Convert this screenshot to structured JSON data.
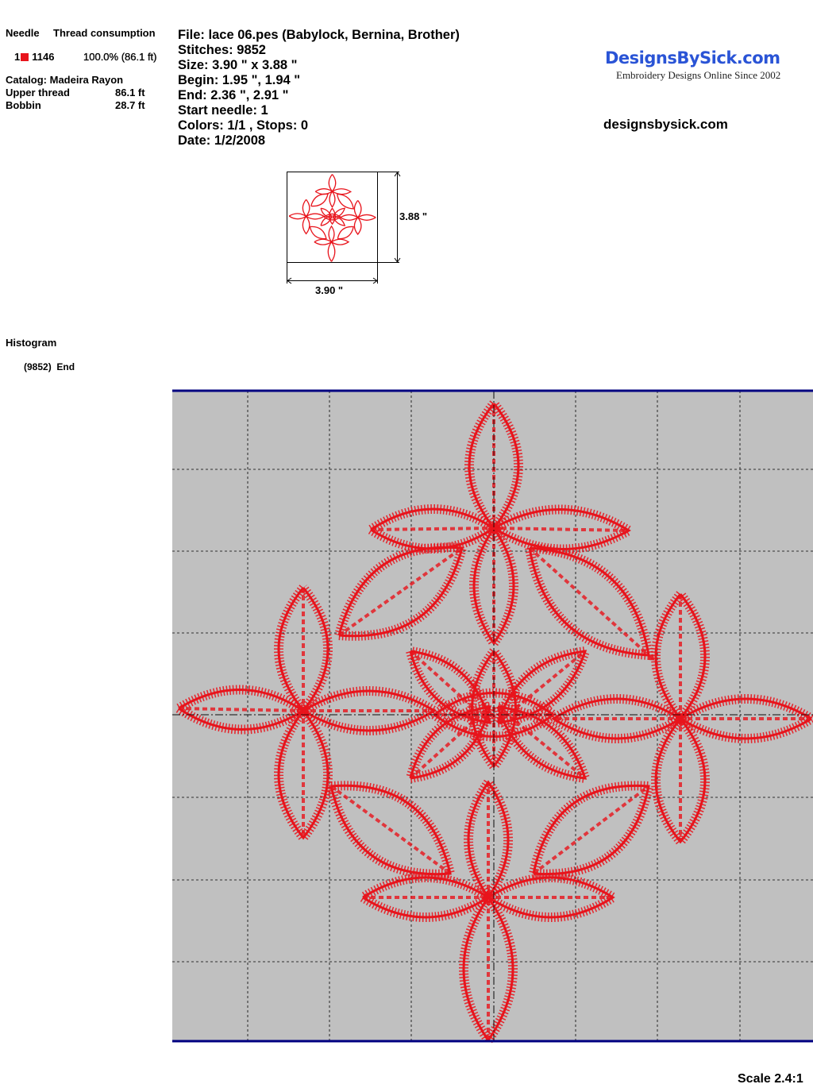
{
  "thread_table": {
    "header_needle": "Needle",
    "header_consumption": "Thread consumption",
    "rows": [
      {
        "needle": "1",
        "color": "#e8141c",
        "code": "1146",
        "consumption": "100.0% (86.1 ft)"
      }
    ],
    "catalog": "Catalog: Madeira Rayon",
    "upper_thread_label": "Upper thread",
    "upper_thread_value": "86.1 ft",
    "bobbin_label": "Bobbin",
    "bobbin_value": "28.7 ft"
  },
  "info": {
    "file": "File: lace 06.pes  (Babylock, Bernina, Brother)",
    "stitches": "Stitches: 9852",
    "size": "Size: 3.90 \" x 3.88 \"",
    "begin": "Begin: 1.95 \", 1.94 \"",
    "end": "End: 2.36 \", 2.91 \"",
    "start_needle": "Start needle: 1",
    "colors": "Colors: 1/1 , Stops: 0",
    "date": "Date: 1/2/2008"
  },
  "logo": {
    "main": "DesignsBySick.com",
    "sub": "Embroidery Designs Online Since 2002"
  },
  "website": "designsbysick.com",
  "thumbnail": {
    "height_label": "3.88 \"",
    "width_label": "3.90 \""
  },
  "histogram": {
    "title": "Histogram",
    "entry_count": "(9852)",
    "entry_label": "End"
  },
  "scale": "Scale 2.4:1",
  "colors": {
    "thread": "#e8141c",
    "canvas": "#c0c0c0",
    "border": "#000080"
  }
}
